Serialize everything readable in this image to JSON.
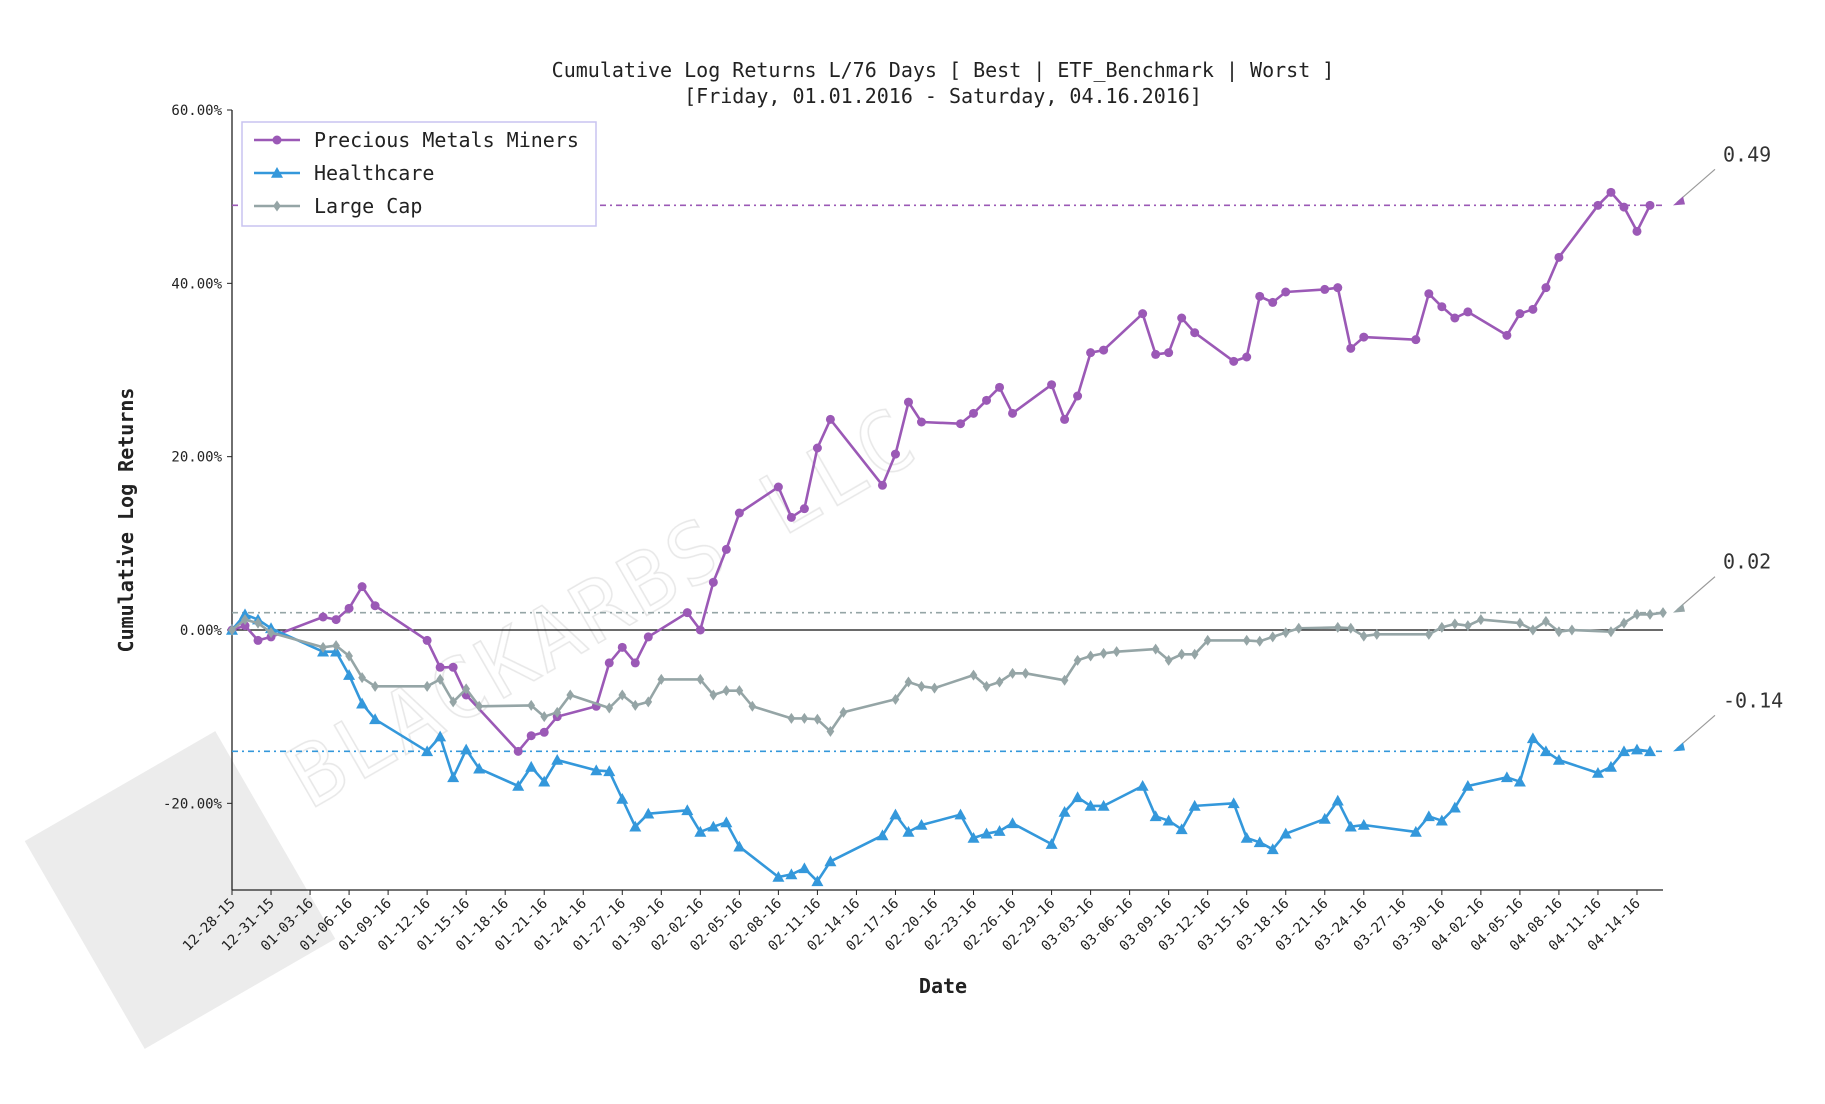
{
  "chart_data": {
    "type": "line",
    "title": "Cumulative Log Returns L/76 Days [ Best | ETF_Benchmark | Worst ]",
    "subtitle": "[Friday, 01.01.2016 - Saturday, 04.16.2016]",
    "xlabel": "Date",
    "ylabel": "Cumulative Log Returns",
    "ylim": [
      -0.3,
      0.6
    ],
    "yticks": [
      -0.2,
      0.0,
      0.2,
      0.4,
      0.6
    ],
    "ytick_labels": [
      "-20.00%",
      "0.00%",
      "20.00%",
      "40.00%",
      "60.00%"
    ],
    "x_start": "2015-12-28",
    "x_end": "2016-04-16",
    "xtick_labels": [
      "12-28-15",
      "12-31-15",
      "01-03-16",
      "01-06-16",
      "01-09-16",
      "01-12-16",
      "01-15-16",
      "01-18-16",
      "01-21-16",
      "01-24-16",
      "01-27-16",
      "01-30-16",
      "02-02-16",
      "02-05-16",
      "02-08-16",
      "02-11-16",
      "02-14-16",
      "02-17-16",
      "02-20-16",
      "02-23-16",
      "02-26-16",
      "02-29-16",
      "03-03-16",
      "03-06-16",
      "03-09-16",
      "03-12-16",
      "03-15-16",
      "03-18-16",
      "03-21-16",
      "03-24-16",
      "03-27-16",
      "03-30-16",
      "04-02-16",
      "04-05-16",
      "04-08-16",
      "04-11-16",
      "04-14-16"
    ],
    "legend_position": "top-left",
    "watermark": "BLACKARBS LLC",
    "series": [
      {
        "name": "Precious Metals Miners",
        "color": "#9b59b6",
        "marker": "circle",
        "final_label": "0.49",
        "final_value": 0.49,
        "points": [
          [
            "2015-12-28",
            0.0
          ],
          [
            "2015-12-29",
            0.005
          ],
          [
            "2015-12-30",
            -0.012
          ],
          [
            "2015-12-31",
            -0.008
          ],
          [
            "2016-01-04",
            0.015
          ],
          [
            "2016-01-05",
            0.012
          ],
          [
            "2016-01-06",
            0.025
          ],
          [
            "2016-01-07",
            0.05
          ],
          [
            "2016-01-08",
            0.028
          ],
          [
            "2016-01-12",
            -0.012
          ],
          [
            "2016-01-13",
            -0.043
          ],
          [
            "2016-01-14",
            -0.043
          ],
          [
            "2016-01-15",
            -0.075
          ],
          [
            "2016-01-19",
            -0.14
          ],
          [
            "2016-01-20",
            -0.122
          ],
          [
            "2016-01-21",
            -0.118
          ],
          [
            "2016-01-22",
            -0.1
          ],
          [
            "2016-01-25",
            -0.088
          ],
          [
            "2016-01-26",
            -0.038
          ],
          [
            "2016-01-27",
            -0.02
          ],
          [
            "2016-01-28",
            -0.038
          ],
          [
            "2016-01-29",
            -0.008
          ],
          [
            "2016-02-01",
            0.02
          ],
          [
            "2016-02-02",
            0.0
          ],
          [
            "2016-02-03",
            0.055
          ],
          [
            "2016-02-04",
            0.093
          ],
          [
            "2016-02-05",
            0.135
          ],
          [
            "2016-02-08",
            0.165
          ],
          [
            "2016-02-09",
            0.13
          ],
          [
            "2016-02-10",
            0.14
          ],
          [
            "2016-02-11",
            0.21
          ],
          [
            "2016-02-12",
            0.243
          ],
          [
            "2016-02-16",
            0.167
          ],
          [
            "2016-02-17",
            0.203
          ],
          [
            "2016-02-18",
            0.263
          ],
          [
            "2016-02-19",
            0.24
          ],
          [
            "2016-02-22",
            0.238
          ],
          [
            "2016-02-23",
            0.25
          ],
          [
            "2016-02-24",
            0.265
          ],
          [
            "2016-02-25",
            0.28
          ],
          [
            "2016-02-26",
            0.25
          ],
          [
            "2016-02-29",
            0.283
          ],
          [
            "2016-03-01",
            0.243
          ],
          [
            "2016-03-02",
            0.27
          ],
          [
            "2016-03-03",
            0.32
          ],
          [
            "2016-03-04",
            0.323
          ],
          [
            "2016-03-07",
            0.365
          ],
          [
            "2016-03-08",
            0.318
          ],
          [
            "2016-03-09",
            0.32
          ],
          [
            "2016-03-10",
            0.36
          ],
          [
            "2016-03-11",
            0.343
          ],
          [
            "2016-03-14",
            0.31
          ],
          [
            "2016-03-15",
            0.315
          ],
          [
            "2016-03-16",
            0.385
          ],
          [
            "2016-03-17",
            0.378
          ],
          [
            "2016-03-18",
            0.39
          ],
          [
            "2016-03-21",
            0.393
          ],
          [
            "2016-03-22",
            0.395
          ],
          [
            "2016-03-23",
            0.325
          ],
          [
            "2016-03-24",
            0.338
          ],
          [
            "2016-03-28",
            0.335
          ],
          [
            "2016-03-29",
            0.388
          ],
          [
            "2016-03-30",
            0.373
          ],
          [
            "2016-03-31",
            0.36
          ],
          [
            "2016-04-01",
            0.367
          ],
          [
            "2016-04-04",
            0.34
          ],
          [
            "2016-04-05",
            0.365
          ],
          [
            "2016-04-06",
            0.37
          ],
          [
            "2016-04-07",
            0.395
          ],
          [
            "2016-04-08",
            0.43
          ],
          [
            "2016-04-11",
            0.49
          ],
          [
            "2016-04-12",
            0.505
          ],
          [
            "2016-04-13",
            0.488
          ],
          [
            "2016-04-14",
            0.46
          ],
          [
            "2016-04-15",
            0.49
          ]
        ]
      },
      {
        "name": "Healthcare",
        "color": "#3498db",
        "marker": "triangle",
        "final_label": "-0.14",
        "final_value": -0.14,
        "points": [
          [
            "2015-12-28",
            0.0
          ],
          [
            "2015-12-29",
            0.018
          ],
          [
            "2015-12-30",
            0.012
          ],
          [
            "2015-12-31",
            0.002
          ],
          [
            "2016-01-04",
            -0.025
          ],
          [
            "2016-01-05",
            -0.025
          ],
          [
            "2016-01-06",
            -0.052
          ],
          [
            "2016-01-07",
            -0.085
          ],
          [
            "2016-01-08",
            -0.103
          ],
          [
            "2016-01-12",
            -0.14
          ],
          [
            "2016-01-13",
            -0.123
          ],
          [
            "2016-01-14",
            -0.17
          ],
          [
            "2016-01-15",
            -0.138
          ],
          [
            "2016-01-16",
            -0.16
          ],
          [
            "2016-01-19",
            -0.18
          ],
          [
            "2016-01-20",
            -0.158
          ],
          [
            "2016-01-21",
            -0.175
          ],
          [
            "2016-01-22",
            -0.15
          ],
          [
            "2016-01-25",
            -0.162
          ],
          [
            "2016-01-26",
            -0.163
          ],
          [
            "2016-01-27",
            -0.195
          ],
          [
            "2016-01-28",
            -0.227
          ],
          [
            "2016-01-29",
            -0.212
          ],
          [
            "2016-02-01",
            -0.208
          ],
          [
            "2016-02-02",
            -0.233
          ],
          [
            "2016-02-03",
            -0.227
          ],
          [
            "2016-02-04",
            -0.222
          ],
          [
            "2016-02-05",
            -0.25
          ],
          [
            "2016-02-08",
            -0.285
          ],
          [
            "2016-02-09",
            -0.282
          ],
          [
            "2016-02-10",
            -0.275
          ],
          [
            "2016-02-11",
            -0.29
          ],
          [
            "2016-02-12",
            -0.267
          ],
          [
            "2016-02-16",
            -0.237
          ],
          [
            "2016-02-17",
            -0.213
          ],
          [
            "2016-02-18",
            -0.233
          ],
          [
            "2016-02-19",
            -0.225
          ],
          [
            "2016-02-22",
            -0.213
          ],
          [
            "2016-02-23",
            -0.24
          ],
          [
            "2016-02-24",
            -0.235
          ],
          [
            "2016-02-25",
            -0.232
          ],
          [
            "2016-02-26",
            -0.223
          ],
          [
            "2016-02-29",
            -0.247
          ],
          [
            "2016-03-01",
            -0.21
          ],
          [
            "2016-03-02",
            -0.193
          ],
          [
            "2016-03-03",
            -0.203
          ],
          [
            "2016-03-04",
            -0.203
          ],
          [
            "2016-03-07",
            -0.18
          ],
          [
            "2016-03-08",
            -0.215
          ],
          [
            "2016-03-09",
            -0.22
          ],
          [
            "2016-03-10",
            -0.23
          ],
          [
            "2016-03-11",
            -0.203
          ],
          [
            "2016-03-14",
            -0.2
          ],
          [
            "2016-03-15",
            -0.24
          ],
          [
            "2016-03-16",
            -0.245
          ],
          [
            "2016-03-17",
            -0.253
          ],
          [
            "2016-03-18",
            -0.235
          ],
          [
            "2016-03-21",
            -0.218
          ],
          [
            "2016-03-22",
            -0.197
          ],
          [
            "2016-03-23",
            -0.227
          ],
          [
            "2016-03-24",
            -0.225
          ],
          [
            "2016-03-28",
            -0.233
          ],
          [
            "2016-03-29",
            -0.215
          ],
          [
            "2016-03-30",
            -0.22
          ],
          [
            "2016-03-31",
            -0.205
          ],
          [
            "2016-04-01",
            -0.18
          ],
          [
            "2016-04-04",
            -0.17
          ],
          [
            "2016-04-05",
            -0.175
          ],
          [
            "2016-04-06",
            -0.125
          ],
          [
            "2016-04-07",
            -0.14
          ],
          [
            "2016-04-08",
            -0.15
          ],
          [
            "2016-04-11",
            -0.165
          ],
          [
            "2016-04-12",
            -0.158
          ],
          [
            "2016-04-13",
            -0.14
          ],
          [
            "2016-04-14",
            -0.138
          ],
          [
            "2016-04-15",
            -0.14
          ]
        ]
      },
      {
        "name": "Large Cap",
        "color": "#95a5a6",
        "marker": "diamond",
        "final_label": "0.02",
        "final_value": 0.02,
        "points": [
          [
            "2015-12-28",
            0.0
          ],
          [
            "2015-12-29",
            0.012
          ],
          [
            "2015-12-30",
            0.008
          ],
          [
            "2015-12-31",
            -0.003
          ],
          [
            "2016-01-04",
            -0.02
          ],
          [
            "2016-01-05",
            -0.018
          ],
          [
            "2016-01-06",
            -0.03
          ],
          [
            "2016-01-07",
            -0.055
          ],
          [
            "2016-01-08",
            -0.065
          ],
          [
            "2016-01-12",
            -0.065
          ],
          [
            "2016-01-13",
            -0.057
          ],
          [
            "2016-01-14",
            -0.083
          ],
          [
            "2016-01-15",
            -0.068
          ],
          [
            "2016-01-16",
            -0.088
          ],
          [
            "2016-01-20",
            -0.087
          ],
          [
            "2016-01-21",
            -0.1
          ],
          [
            "2016-01-22",
            -0.095
          ],
          [
            "2016-01-23",
            -0.075
          ],
          [
            "2016-01-26",
            -0.09
          ],
          [
            "2016-01-27",
            -0.075
          ],
          [
            "2016-01-28",
            -0.087
          ],
          [
            "2016-01-29",
            -0.083
          ],
          [
            "2016-01-30",
            -0.057
          ],
          [
            "2016-02-02",
            -0.057
          ],
          [
            "2016-02-03",
            -0.075
          ],
          [
            "2016-02-04",
            -0.07
          ],
          [
            "2016-02-05",
            -0.07
          ],
          [
            "2016-02-06",
            -0.088
          ],
          [
            "2016-02-09",
            -0.102
          ],
          [
            "2016-02-10",
            -0.102
          ],
          [
            "2016-02-11",
            -0.103
          ],
          [
            "2016-02-12",
            -0.117
          ],
          [
            "2016-02-13",
            -0.095
          ],
          [
            "2016-02-17",
            -0.08
          ],
          [
            "2016-02-18",
            -0.06
          ],
          [
            "2016-02-19",
            -0.065
          ],
          [
            "2016-02-20",
            -0.067
          ],
          [
            "2016-02-23",
            -0.052
          ],
          [
            "2016-02-24",
            -0.065
          ],
          [
            "2016-02-25",
            -0.06
          ],
          [
            "2016-02-26",
            -0.05
          ],
          [
            "2016-02-27",
            -0.05
          ],
          [
            "2016-03-01",
            -0.058
          ],
          [
            "2016-03-02",
            -0.035
          ],
          [
            "2016-03-03",
            -0.03
          ],
          [
            "2016-03-04",
            -0.027
          ],
          [
            "2016-03-05",
            -0.025
          ],
          [
            "2016-03-08",
            -0.022
          ],
          [
            "2016-03-09",
            -0.035
          ],
          [
            "2016-03-10",
            -0.028
          ],
          [
            "2016-03-11",
            -0.028
          ],
          [
            "2016-03-12",
            -0.012
          ],
          [
            "2016-03-15",
            -0.012
          ],
          [
            "2016-03-16",
            -0.013
          ],
          [
            "2016-03-17",
            -0.008
          ],
          [
            "2016-03-18",
            -0.003
          ],
          [
            "2016-03-19",
            0.002
          ],
          [
            "2016-03-22",
            0.003
          ],
          [
            "2016-03-23",
            0.002
          ],
          [
            "2016-03-24",
            -0.007
          ],
          [
            "2016-03-25",
            -0.005
          ],
          [
            "2016-03-29",
            -0.005
          ],
          [
            "2016-03-30",
            0.003
          ],
          [
            "2016-03-31",
            0.007
          ],
          [
            "2016-04-01",
            0.005
          ],
          [
            "2016-04-02",
            0.012
          ],
          [
            "2016-04-05",
            0.008
          ],
          [
            "2016-04-06",
            0.0
          ],
          [
            "2016-04-07",
            0.01
          ],
          [
            "2016-04-08",
            -0.002
          ],
          [
            "2016-04-09",
            0.0
          ],
          [
            "2016-04-12",
            -0.002
          ],
          [
            "2016-04-13",
            0.008
          ],
          [
            "2016-04-14",
            0.018
          ],
          [
            "2016-04-15",
            0.018
          ],
          [
            "2016-04-16",
            0.02
          ]
        ]
      }
    ]
  }
}
